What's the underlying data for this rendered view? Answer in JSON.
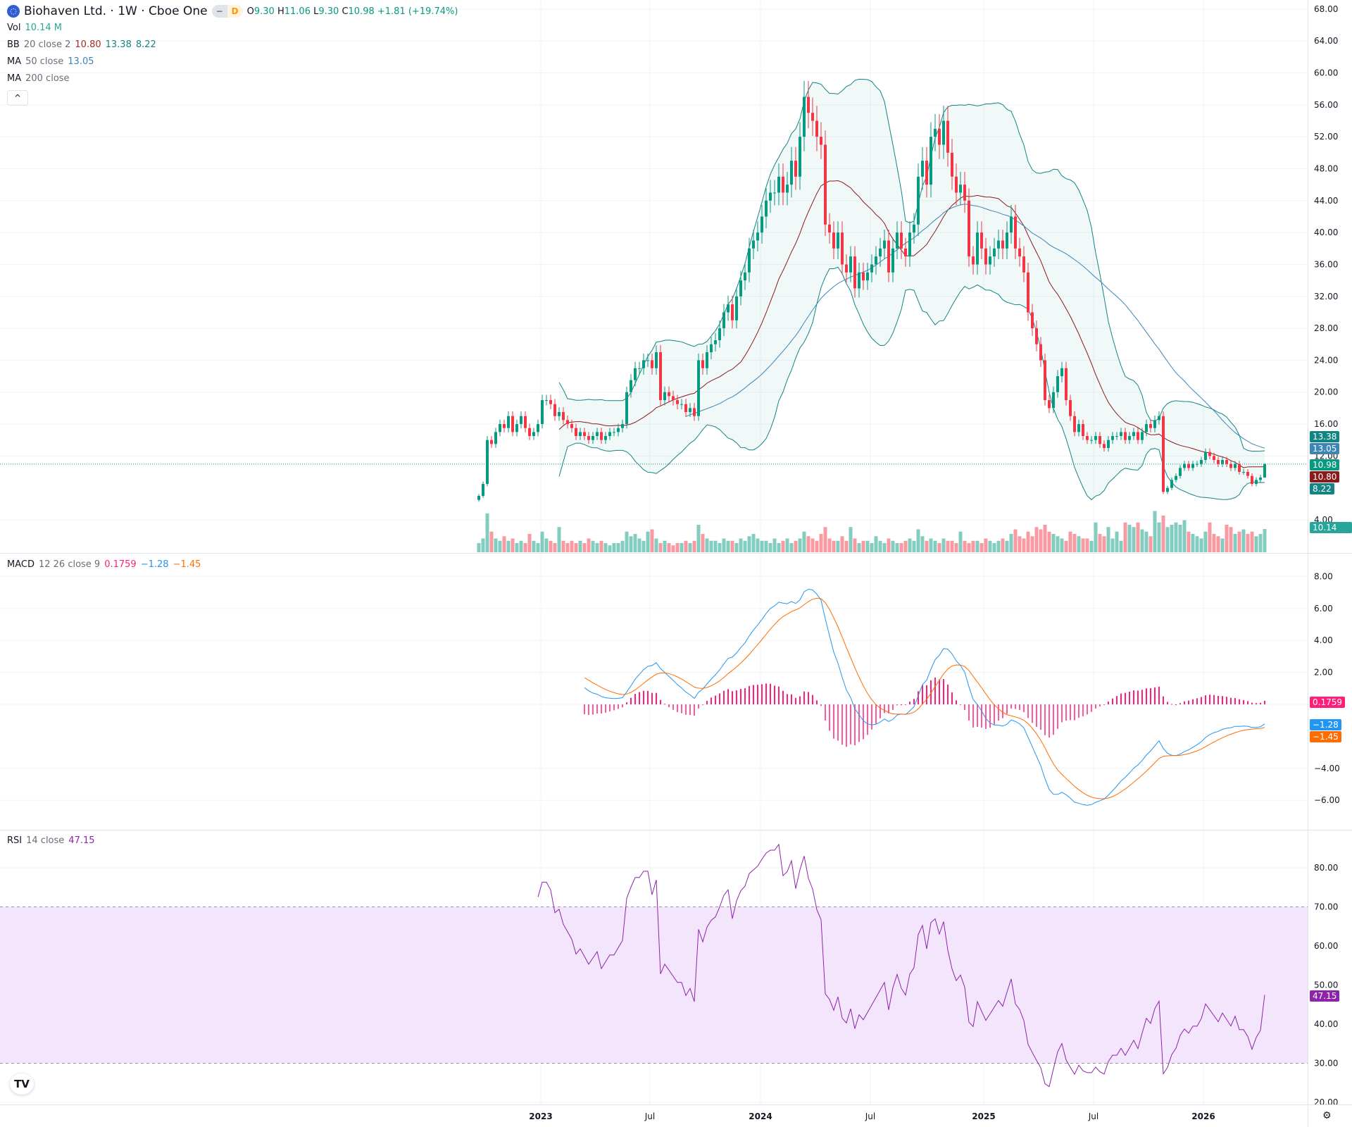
{
  "header": {
    "title": "Biohaven Ltd. · 1W · Cboe One",
    "logo_icon": "biohaven-logo",
    "badge_minus": "−",
    "badge_d": "D",
    "open_label": "O",
    "open": "9.30",
    "high_label": "H",
    "high": "11.06",
    "low_label": "L",
    "low": "9.30",
    "close_label": "C",
    "close": "10.98",
    "change": "+1.81 (+19.74%)"
  },
  "legends": {
    "vol_label": "Vol",
    "vol_value": "10.14 M",
    "bb_label": "BB",
    "bb_params": "20 close 2",
    "bb_basis": "10.80",
    "bb_upper": "13.38",
    "bb_lower": "8.22",
    "ma50_label": "MA",
    "ma50_params": "50 close",
    "ma50_value": "13.05",
    "ma200_label": "MA",
    "ma200_params": "200 close",
    "collapse_icon": "^",
    "macd_label": "MACD",
    "macd_params": "12 26 close 9",
    "macd_hist": "0.1759",
    "macd_line": "−1.28",
    "macd_signal": "−1.45",
    "rsi_label": "RSI",
    "rsi_params": "14 close",
    "rsi_value": "47.15"
  },
  "tags": {
    "bb_upper": "13.38",
    "ma50": "13.05",
    "price": "10.98",
    "bb_basis": "10.80",
    "bb_lower": "8.22",
    "volume": "10.14 M",
    "macd_hist": "0.1759",
    "macd_line": "−1.28",
    "macd_signal": "−1.45",
    "rsi": "47.15"
  },
  "colors": {
    "up": "#089981",
    "down": "#f23645",
    "bb_band": "#138484",
    "bb_basis": "#8b1a1a",
    "ma50": "#3d85b5",
    "macd": "#2196f3",
    "signal": "#ff6d00",
    "hist": "#ff1f7a",
    "rsi": "#8e24aa",
    "rsi_band": "#f3e5fc"
  },
  "logo_text": "TV",
  "settings_icon": "⚙",
  "chart_data": {
    "type": "candlestick",
    "interval": "1W",
    "price_axis": {
      "ticks": [
        "68.00",
        "64.00",
        "60.00",
        "56.00",
        "52.00",
        "48.00",
        "44.00",
        "40.00",
        "36.00",
        "32.00",
        "28.00",
        "24.00",
        "20.00",
        "16.00",
        "12.00",
        "4.00"
      ],
      "range": [
        4,
        68
      ]
    },
    "macd_axis": {
      "ticks": [
        "8.00",
        "6.00",
        "4.00",
        "2.00",
        "−4.00",
        "−6.00"
      ],
      "range": [
        -6,
        8
      ]
    },
    "rsi_axis": {
      "ticks": [
        "80.00",
        "70.00",
        "60.00",
        "50.00",
        "40.00",
        "30.00",
        "20.00"
      ],
      "range": [
        20,
        80
      ],
      "bands": [
        30,
        70
      ]
    },
    "time_axis": [
      "2023",
      "Jul",
      "2024",
      "Jul",
      "2025",
      "Jul",
      "2026"
    ],
    "closes": [
      7,
      8.5,
      14,
      13.5,
      15,
      16,
      15.5,
      17,
      15,
      16,
      17,
      15.5,
      14.5,
      15,
      16,
      19,
      19,
      18.5,
      17,
      17.5,
      16.5,
      16,
      15.5,
      14.5,
      15,
      14.5,
      14,
      14.5,
      15,
      14,
      14.5,
      15,
      15,
      15.5,
      16,
      20,
      21.5,
      23,
      23,
      24,
      24,
      23,
      25,
      19,
      20,
      19.5,
      19,
      18.5,
      18.5,
      17.5,
      18,
      17,
      24,
      23,
      25,
      26,
      26.5,
      28,
      30,
      31,
      29,
      32,
      34,
      35,
      38,
      39,
      40,
      42,
      44,
      45,
      45,
      47,
      45,
      46,
      49,
      47,
      52,
      57,
      55,
      54,
      52,
      51,
      41,
      40,
      38,
      40,
      36,
      35,
      37,
      33,
      35,
      34,
      35,
      36,
      37,
      38,
      39,
      35,
      38,
      40,
      38,
      37,
      40,
      41,
      47,
      49,
      46,
      52,
      53,
      51,
      54,
      50,
      47,
      45,
      46,
      44,
      37,
      36,
      40,
      38,
      36,
      37,
      38,
      39,
      38,
      40,
      42,
      38,
      37,
      35,
      30,
      28,
      26,
      24,
      19,
      18,
      20,
      22,
      23,
      19,
      17,
      15,
      16,
      14.5,
      14,
      14,
      14.5,
      13.5,
      13,
      14,
      14.5,
      14.5,
      15,
      14,
      14.5,
      15,
      14,
      15,
      16,
      15.5,
      16.5,
      17,
      7.5,
      8,
      9,
      9.5,
      10.5,
      11,
      10.5,
      11,
      11,
      11.5,
      12.5,
      12,
      11.5,
      11,
      11.5,
      11,
      10.5,
      11,
      10,
      10,
      9.5,
      8.5,
      9,
      9.3,
      10.98
    ],
    "first_open": 6.5,
    "volumes_millions": [
      4,
      6,
      17,
      9,
      6,
      5,
      7,
      5,
      6,
      4,
      5,
      4,
      8,
      5,
      4,
      9,
      6,
      5,
      4,
      11,
      5,
      4,
      5,
      4,
      5,
      4,
      6,
      5,
      4,
      5,
      4,
      3,
      4,
      4,
      5,
      9,
      7,
      8,
      6,
      5,
      9,
      10,
      6,
      4,
      5,
      4,
      3,
      4,
      4,
      5,
      4,
      5,
      12,
      8,
      6,
      5,
      5,
      4,
      6,
      5,
      5,
      4,
      6,
      5,
      7,
      8,
      6,
      5,
      5,
      4,
      6,
      4,
      5,
      6,
      4,
      5,
      6,
      9,
      7,
      6,
      5,
      8,
      11,
      6,
      5,
      5,
      7,
      5,
      11,
      6,
      4,
      5,
      5,
      4,
      7,
      5,
      4,
      6,
      5,
      4,
      4,
      5,
      6,
      5,
      10,
      7,
      5,
      6,
      5,
      4,
      6,
      5,
      5,
      4,
      9,
      5,
      4,
      5,
      5,
      4,
      6,
      5,
      4,
      5,
      6,
      5,
      8,
      10,
      7,
      6,
      9,
      7,
      11,
      10,
      12,
      9,
      8,
      7,
      6,
      5,
      9,
      8,
      7,
      6,
      6,
      5,
      13,
      8,
      7,
      11,
      6,
      9,
      5,
      13,
      12,
      11,
      13,
      10,
      9,
      7,
      18,
      13,
      16,
      11,
      12,
      13,
      12,
      14,
      9,
      8,
      7,
      6,
      9,
      13,
      8,
      7,
      6,
      12,
      11,
      8,
      9,
      10,
      8,
      9,
      7,
      8,
      10.14
    ]
  }
}
